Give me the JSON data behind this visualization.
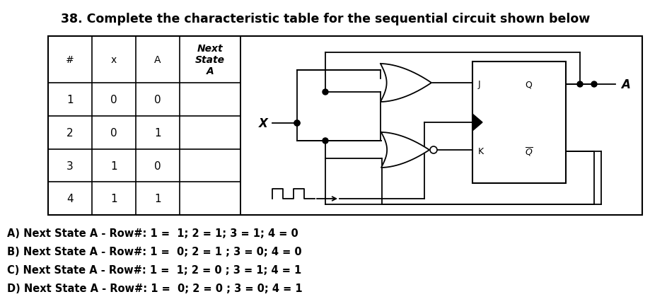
{
  "title": "38. Complete the characteristic table for the sequential circuit shown below",
  "title_fontsize": 12.5,
  "table_headers": [
    "#",
    "x",
    "A",
    "Next\nState\nA"
  ],
  "table_rows": [
    [
      "1",
      "0",
      "0",
      ""
    ],
    [
      "2",
      "0",
      "1",
      ""
    ],
    [
      "3",
      "1",
      "0",
      ""
    ],
    [
      "4",
      "1",
      "1",
      ""
    ]
  ],
  "answers": [
    "A) Next State A - Row#: 1 =  1; 2 = 1; 3 = 1; 4 = 0",
    "B) Next State A - Row#: 1 =  0; 2 = 1 ; 3 = 0; 4 = 0",
    "C) Next State A - Row#: 1 =  1; 2 = 0 ; 3 = 1; 4 = 1",
    "D) Next State A - Row#: 1 =  0; 2 = 0 ; 3 = 0; 4 = 1"
  ],
  "background_color": "#ffffff"
}
